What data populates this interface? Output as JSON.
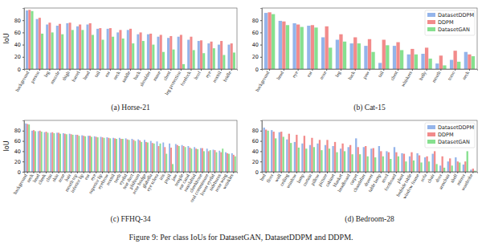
{
  "caption": "Figure 9: Per class IoUs for DatasetGAN, DatasetDDPM and DDPM.",
  "chart_data": [
    {
      "type": "bar",
      "title": "(a) Horse-21",
      "ylabel": "IoU",
      "categories": [
        "background",
        "person",
        "leg",
        "muzzle",
        "thigh",
        "barrel",
        "head",
        "tail",
        "ear",
        "neck",
        "saddle",
        "back",
        "shoulder",
        "mane",
        "chest",
        "leg protection",
        "forelock",
        "hoof",
        "eye",
        "nostril",
        "bridle"
      ],
      "series": [
        {
          "name": "DatasetDDPM",
          "color": "#94b4ea",
          "values": [
            96,
            82,
            73,
            71,
            75,
            70,
            73,
            66,
            66,
            60,
            64,
            57,
            57,
            53,
            51,
            53,
            48,
            46,
            42,
            40,
            40
          ]
        },
        {
          "name": "DDPM",
          "color": "#f28b8b",
          "values": [
            97,
            84,
            76,
            74,
            76,
            73,
            75,
            67,
            67,
            64,
            66,
            60,
            58,
            56,
            54,
            56,
            53,
            47,
            45,
            46,
            42
          ]
        },
        {
          "name": "DatasetGAN",
          "color": "#86e08f",
          "values": [
            95,
            58,
            60,
            57,
            64,
            64,
            56,
            48,
            53,
            50,
            42,
            46,
            40,
            28,
            32,
            8,
            31,
            26,
            34,
            23,
            27
          ]
        }
      ],
      "ylim": [
        0,
        100
      ],
      "yticks": [
        0,
        20,
        40,
        60,
        80
      ],
      "grid": false
    },
    {
      "type": "bar",
      "title": "(b) Cat-15",
      "categories": [
        "background",
        "head",
        "eye",
        "ear",
        "nose",
        "leg",
        "back",
        "paw",
        "tail",
        "chest",
        "whiskers",
        "belly",
        "mouth",
        "torso",
        "neck"
      ],
      "series": [
        {
          "name": "DatasetDDPM",
          "color": "#94b4ea",
          "values": [
            92,
            79,
            75,
            71,
            52,
            48,
            42,
            38,
            10,
            38,
            24,
            25,
            9,
            15,
            28
          ]
        },
        {
          "name": "DDPM",
          "color": "#f28b8b",
          "values": [
            93,
            78,
            73,
            72,
            70,
            57,
            52,
            49,
            48,
            44,
            33,
            35,
            22,
            30,
            24
          ]
        },
        {
          "name": "DatasetGAN",
          "color": "#86e08f",
          "values": [
            90,
            72,
            69,
            68,
            35,
            45,
            42,
            28,
            39,
            31,
            24,
            17,
            6,
            12,
            21
          ]
        }
      ],
      "ylim": [
        0,
        100
      ],
      "yticks": [
        0,
        20,
        40,
        60,
        80
      ],
      "grid": false,
      "legend": "upper right"
    },
    {
      "type": "bar",
      "title": "(c) FFHQ-34",
      "ylabel": "IoU",
      "categories": [
        "background",
        "neck",
        "head",
        "cheek",
        "chin",
        "skin",
        "nose",
        "hair",
        "mouth top",
        "inferior lip",
        "ear",
        "eye",
        "superior lip",
        "eyebrow",
        "nostril",
        "teeth",
        "eyelid",
        "tear duct",
        "philtrum",
        "nose bridge",
        "glabella",
        "eye sclera",
        "iris",
        "pupil",
        "jaw",
        "temple",
        "ear canal",
        "nasolabial",
        "cheekbone",
        "oral commissure",
        "lower eyelid",
        "sideburns",
        "nose wing",
        "wrinkles"
      ],
      "series": [
        {
          "name": "DatasetDDPM",
          "color": "#94b4ea",
          "values": [
            94,
            80,
            79,
            77,
            76,
            76,
            75,
            74,
            72,
            71,
            70,
            69,
            68,
            67,
            66,
            66,
            65,
            64,
            63,
            62,
            60,
            59,
            57,
            55,
            54,
            52,
            50,
            48,
            46,
            45,
            43,
            41,
            38,
            36
          ]
        },
        {
          "name": "DDPM",
          "color": "#f28b8b",
          "values": [
            93,
            81,
            80,
            78,
            77,
            76,
            74,
            73,
            72,
            70,
            70,
            68,
            67,
            66,
            65,
            64,
            63,
            62,
            61,
            58,
            56,
            50,
            48,
            47,
            52,
            50,
            47,
            45,
            46,
            40,
            42,
            38,
            36,
            33
          ]
        },
        {
          "name": "DatasetGAN",
          "color": "#86e08f",
          "values": [
            92,
            79,
            78,
            76,
            75,
            74,
            73,
            72,
            70,
            69,
            68,
            67,
            66,
            65,
            64,
            64,
            62,
            60,
            58,
            57,
            55,
            55,
            35,
            15,
            50,
            48,
            45,
            44,
            40,
            42,
            38,
            45,
            35,
            30
          ]
        }
      ],
      "ylim": [
        0,
        100
      ],
      "yticks": [
        0,
        20,
        40,
        60,
        80
      ],
      "grid": false
    },
    {
      "type": "bar",
      "title": "(d) Bedroom-28",
      "categories": [
        "bed",
        "floor",
        "wall",
        "ceiling",
        "window",
        "lamp",
        "curtain",
        "pillow",
        "picture",
        "cabinet",
        "blanket",
        "headboard",
        "carpet",
        "chandelier",
        "drawer",
        "table lamp",
        "stool",
        "footboard",
        "plant",
        "bedside table",
        "window frame",
        "sofa",
        "chair",
        "door",
        "armchair",
        "shelf",
        "mirror",
        "wardrobe"
      ],
      "series": [
        {
          "name": "DatasetDDPM",
          "color": "#94b4ea",
          "values": [
            86,
            81,
            77,
            63,
            58,
            55,
            52,
            55,
            52,
            50,
            45,
            48,
            65,
            48,
            45,
            50,
            40,
            48,
            36,
            30,
            36,
            28,
            35,
            12,
            20,
            28,
            14,
            4
          ]
        },
        {
          "name": "DDPM",
          "color": "#f28b8b",
          "values": [
            82,
            78,
            78,
            74,
            72,
            70,
            66,
            62,
            62,
            58,
            55,
            52,
            48,
            50,
            46,
            40,
            38,
            38,
            35,
            38,
            32,
            30,
            40,
            30,
            26,
            20,
            20,
            6
          ]
        },
        {
          "name": "DatasetGAN",
          "color": "#86e08f",
          "values": [
            80,
            65,
            68,
            56,
            47,
            45,
            48,
            42,
            45,
            38,
            40,
            34,
            34,
            30,
            28,
            30,
            25,
            30,
            20,
            22,
            18,
            20,
            15,
            8,
            12,
            18,
            40,
            2
          ]
        }
      ],
      "ylim": [
        0,
        100
      ],
      "yticks": [
        0,
        20,
        40,
        60,
        80
      ],
      "grid": false,
      "legend": "upper right"
    }
  ]
}
